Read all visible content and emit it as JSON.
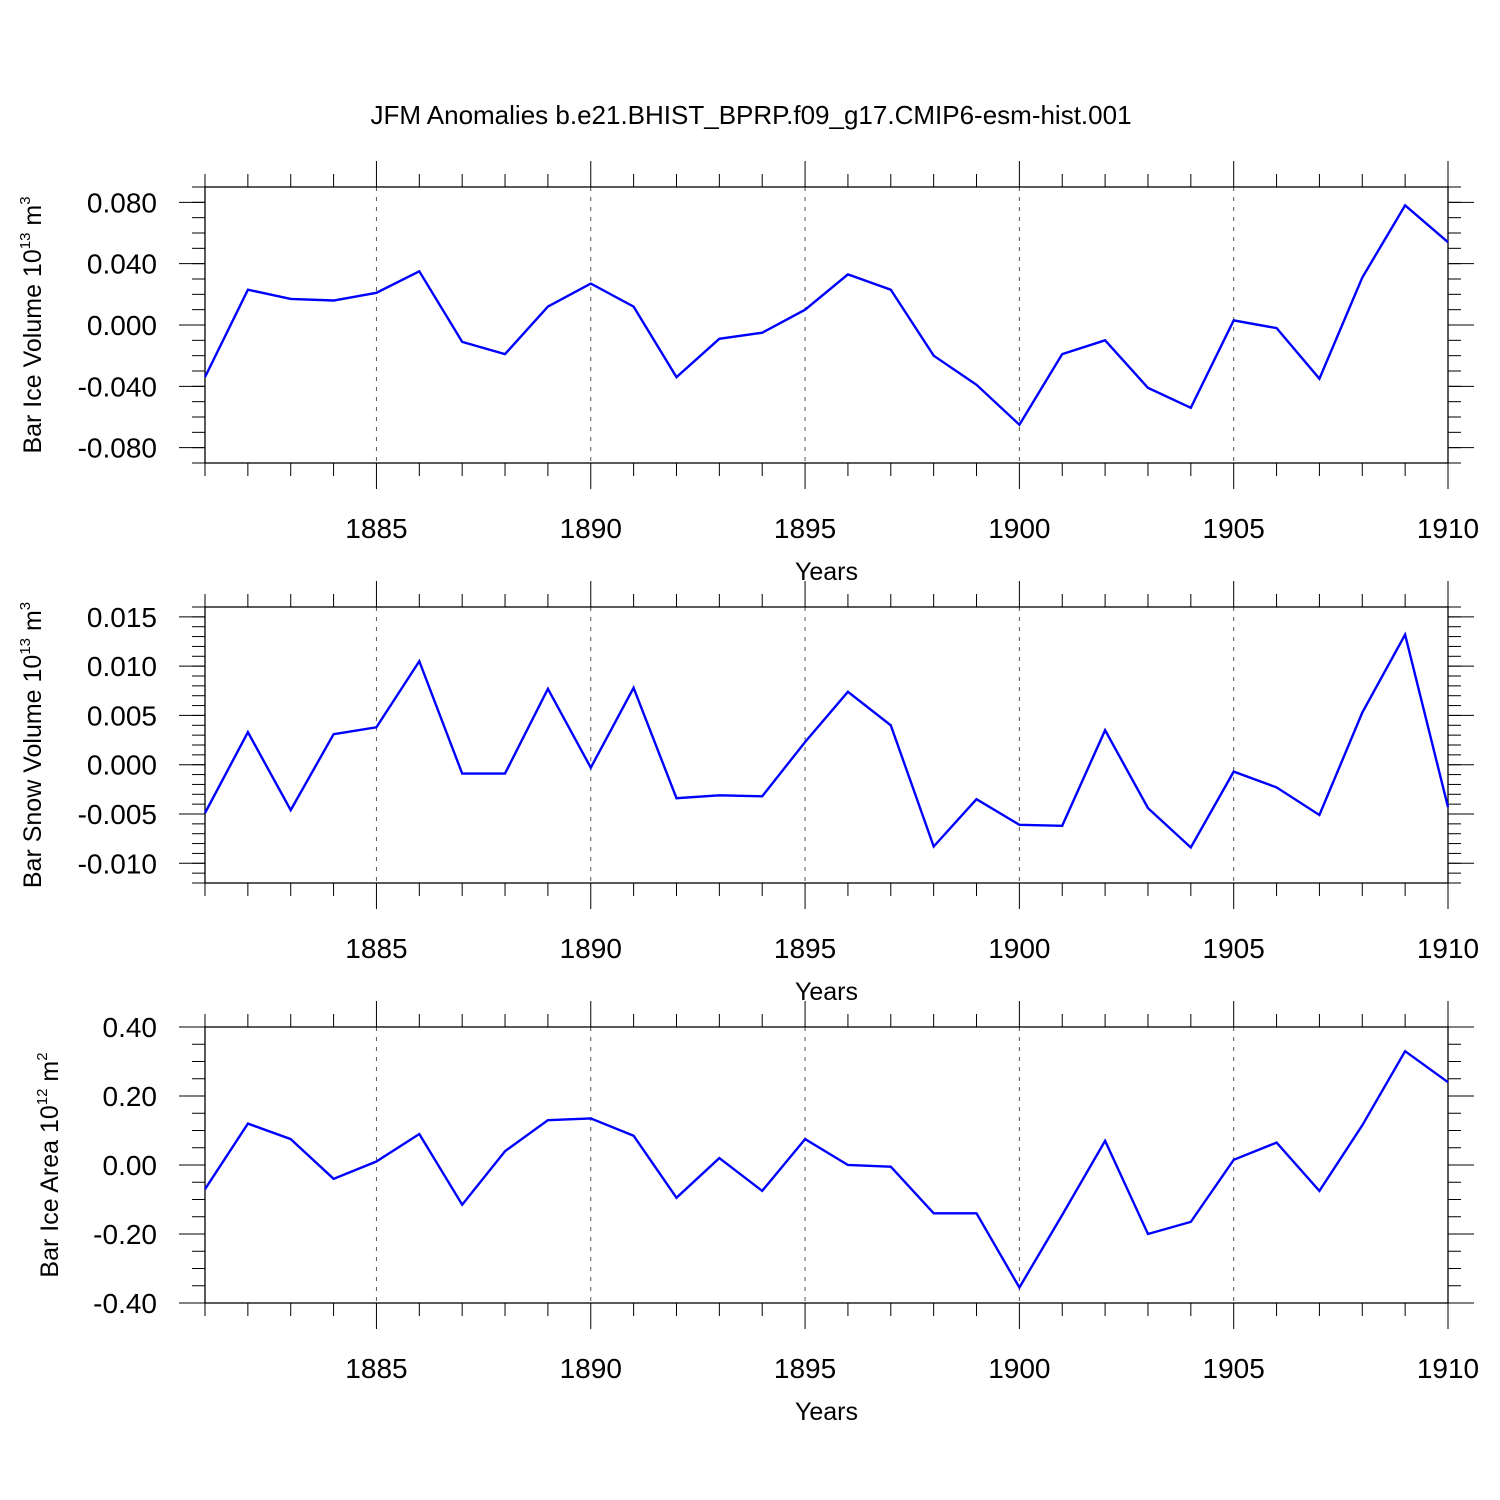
{
  "title": "JFM Anomalies b.e21.BHIST_BPRP.f09_g17.CMIP6-esm-hist.001",
  "line_color": "#0000ff",
  "chart_data": [
    {
      "type": "line",
      "xlabel": "Years",
      "ylabel": {
        "text": "Bar Ice Volume 10",
        "sup": "13",
        "unit": " m",
        "unit_sup": "3"
      },
      "xlim": [
        1881,
        1910
      ],
      "ylim": [
        -0.09,
        0.09
      ],
      "x_major_ticks": [
        1885,
        1890,
        1895,
        1900,
        1905,
        1910
      ],
      "y_ticks": [
        0.08,
        0.04,
        0.0,
        -0.04,
        -0.08
      ],
      "y_tick_labels": [
        "0.080",
        "0.040",
        "0.000",
        "-0.040",
        "-0.080"
      ],
      "y_minor_step": 0.01,
      "grid": "dashed vertical at x major ticks",
      "x": [
        1881,
        1882,
        1883,
        1884,
        1885,
        1886,
        1887,
        1888,
        1889,
        1890,
        1891,
        1892,
        1893,
        1894,
        1895,
        1896,
        1897,
        1898,
        1899,
        1900,
        1901,
        1902,
        1903,
        1904,
        1905,
        1906,
        1907,
        1908,
        1909,
        1910
      ],
      "values": [
        -0.034,
        0.023,
        0.017,
        0.016,
        0.021,
        0.035,
        -0.011,
        -0.019,
        0.012,
        0.027,
        0.012,
        -0.034,
        -0.009,
        -0.005,
        0.01,
        0.033,
        0.023,
        -0.02,
        -0.039,
        -0.065,
        -0.019,
        -0.01,
        -0.041,
        -0.054,
        0.003,
        -0.002,
        -0.035,
        0.031,
        0.078,
        0.054
      ]
    },
    {
      "type": "line",
      "xlabel": "Years",
      "ylabel": {
        "text": "Bar Snow Volume 10",
        "sup": "13",
        "unit": " m",
        "unit_sup": "3"
      },
      "xlim": [
        1881,
        1910
      ],
      "ylim": [
        -0.012,
        0.016
      ],
      "x_major_ticks": [
        1885,
        1890,
        1895,
        1900,
        1905,
        1910
      ],
      "y_ticks": [
        0.015,
        0.01,
        0.005,
        0.0,
        -0.005,
        -0.01
      ],
      "y_tick_labels": [
        "0.015",
        "0.010",
        "0.005",
        "0.000",
        "-0.005",
        "-0.010"
      ],
      "y_minor_step": 0.001,
      "grid": "dashed vertical at x major ticks",
      "x": [
        1881,
        1882,
        1883,
        1884,
        1885,
        1886,
        1887,
        1888,
        1889,
        1890,
        1891,
        1892,
        1893,
        1894,
        1895,
        1896,
        1897,
        1898,
        1899,
        1900,
        1901,
        1902,
        1903,
        1904,
        1905,
        1906,
        1907,
        1908,
        1909,
        1910
      ],
      "values": [
        -0.0049,
        0.0033,
        -0.0046,
        0.0031,
        0.0038,
        0.0105,
        -0.0009,
        -0.0009,
        0.0077,
        -0.0003,
        0.0078,
        -0.0034,
        -0.0031,
        -0.0032,
        0.0023,
        0.0074,
        0.004,
        -0.0083,
        -0.0035,
        -0.0061,
        -0.0062,
        0.0035,
        -0.0044,
        -0.0084,
        -0.0007,
        -0.0023,
        -0.0051,
        0.0053,
        0.0132,
        -0.0043
      ]
    },
    {
      "type": "line",
      "xlabel": "Years",
      "ylabel": {
        "text": "Bar Ice Area 10",
        "sup": "12",
        "unit": " m",
        "unit_sup": "2"
      },
      "xlim": [
        1881,
        1910
      ],
      "ylim": [
        -0.4,
        0.4
      ],
      "x_major_ticks": [
        1885,
        1890,
        1895,
        1900,
        1905,
        1910
      ],
      "y_ticks": [
        0.4,
        0.2,
        0.0,
        -0.2,
        -0.4
      ],
      "y_tick_labels": [
        "0.40",
        "0.20",
        "0.00",
        "-0.20",
        "-0.40"
      ],
      "y_minor_step": 0.05,
      "grid": "dashed vertical at x major ticks",
      "x": [
        1881,
        1882,
        1883,
        1884,
        1885,
        1886,
        1887,
        1888,
        1889,
        1890,
        1891,
        1892,
        1893,
        1894,
        1895,
        1896,
        1897,
        1898,
        1899,
        1900,
        1901,
        1902,
        1903,
        1904,
        1905,
        1906,
        1907,
        1908,
        1909,
        1910
      ],
      "values": [
        -0.07,
        0.12,
        0.075,
        -0.04,
        0.01,
        0.09,
        -0.115,
        0.04,
        0.13,
        0.135,
        0.085,
        -0.095,
        0.02,
        -0.075,
        0.075,
        0.0,
        -0.005,
        -0.14,
        -0.14,
        -0.355,
        -0.145,
        0.07,
        -0.2,
        -0.165,
        0.015,
        0.065,
        -0.075,
        0.115,
        0.33,
        0.24
      ]
    }
  ]
}
